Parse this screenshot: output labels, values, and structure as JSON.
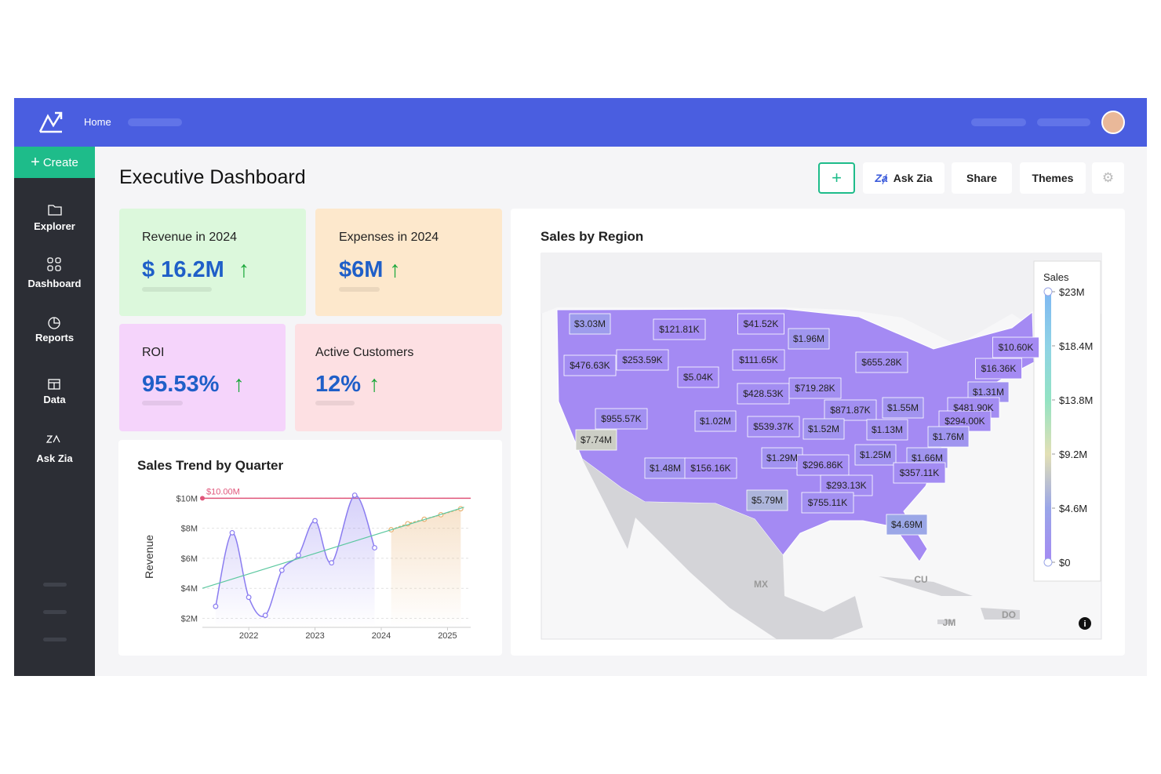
{
  "nav": {
    "home": "Home"
  },
  "sidebar": {
    "create": "Create",
    "items": [
      "Explorer",
      "Dashboard",
      "Reports",
      "Data",
      "Ask Zia"
    ]
  },
  "header": {
    "title": "Executive Dashboard",
    "buttons": [
      "Ask Zia",
      "Share",
      "Themes"
    ]
  },
  "kpis": [
    {
      "label": "Revenue in 2024",
      "value": "$ 16.2M"
    },
    {
      "label": "Expenses in 2024",
      "value": "$6M"
    },
    {
      "label": "ROI",
      "value": "95.53%"
    },
    {
      "label": "Active Customers",
      "value": "12%"
    }
  ],
  "chart_data": [
    {
      "type": "line",
      "title": "Sales Trend by Quarter",
      "y_label": "Revenue",
      "x": [
        2021.5,
        2021.75,
        2022,
        2022.25,
        2022.5,
        2022.75,
        2023,
        2023.25,
        2023.6,
        2023.9,
        2024.15,
        2024.4,
        2024.65,
        2024.9,
        2025.2
      ],
      "xlim": [
        2021.3,
        2025.35
      ],
      "xticks": [
        2022,
        2023,
        2024,
        2025
      ],
      "ylim": [
        1.4,
        10.8
      ],
      "yticks": [
        {
          "value": 2,
          "label": "$2M"
        },
        {
          "value": 4,
          "label": "$4M"
        },
        {
          "value": 6,
          "label": "$6M"
        },
        {
          "value": 8,
          "label": "$8M"
        },
        {
          "value": 10,
          "label": "$10M"
        }
      ],
      "series": [
        {
          "color": "#8a7cf0",
          "values": [
            2.8,
            7.7,
            3.4,
            2.2,
            5.2,
            6.2,
            8.5,
            5.7,
            10.2,
            6.7,
            null,
            null,
            null,
            null,
            null
          ]
        },
        {
          "color": "#e8b070",
          "values": [
            null,
            null,
            null,
            null,
            null,
            null,
            null,
            null,
            null,
            null,
            7.9,
            8.3,
            8.6,
            8.9,
            9.3
          ]
        }
      ],
      "reference_line": {
        "value": 10,
        "label": "$10.00M",
        "color": "#e0557a"
      },
      "trend_line": {
        "x": [
          2021.3,
          2025.25
        ],
        "values": [
          4.0,
          9.4
        ],
        "color": "#5cc8a0"
      },
      "grid": true
    },
    {
      "type": "choropleth",
      "title": "Sales by Region",
      "values": [
        3030000,
        121810,
        41520,
        1960000,
        476630,
        253590,
        111650,
        655280,
        10600,
        16360,
        5040,
        428530,
        719280,
        1310000,
        871870,
        1550000,
        481900,
        955570,
        1020000,
        539370,
        1520000,
        1130000,
        294000,
        7740000,
        1760000,
        1290000,
        1250000,
        1660000,
        296860,
        1480000,
        156160,
        357110,
        293130,
        5790000,
        755110,
        4690000
      ],
      "value_labels": [
        "$3.03M",
        "$121.81K",
        "$41.52K",
        "$1.96M",
        "$476.63K",
        "$253.59K",
        "$111.65K",
        "$655.28K",
        "$10.60K",
        "$16.36K",
        "$5.04K",
        "$428.53K",
        "$719.28K",
        "$1.31M",
        "$871.87K",
        "$1.55M",
        "$481.90K",
        "$955.57K",
        "$1.02M",
        "$539.37K",
        "$1.52M",
        "$1.13M",
        "$294.00K",
        "$7.74M",
        "$1.76M",
        "$1.29M",
        "$1.25M",
        "$1.66M",
        "$296.86K",
        "$1.48M",
        "$156.16K",
        "$357.11K",
        "$293.13K",
        "$5.79M",
        "$755.11K",
        "$4.69M"
      ],
      "clim": [
        0,
        23000000
      ],
      "legend_title": "Sales",
      "legend_ticks": [
        {
          "value": 23000000,
          "label": "$23M"
        },
        {
          "value": 18400000,
          "label": "$18.4M"
        },
        {
          "value": 13800000,
          "label": "$13.8M"
        },
        {
          "value": 9200000,
          "label": "$9.2M"
        },
        {
          "value": 4600000,
          "label": "$4.6M"
        },
        {
          "value": 0,
          "label": "$0"
        }
      ],
      "color_scale": [
        "#a48af3",
        "#9aa6e8",
        "#e3e0b5",
        "#93e3c3",
        "#8fd3e6",
        "#7fb8f2"
      ],
      "place_labels": [
        "MX",
        "CU",
        "JM",
        "DO"
      ]
    }
  ]
}
